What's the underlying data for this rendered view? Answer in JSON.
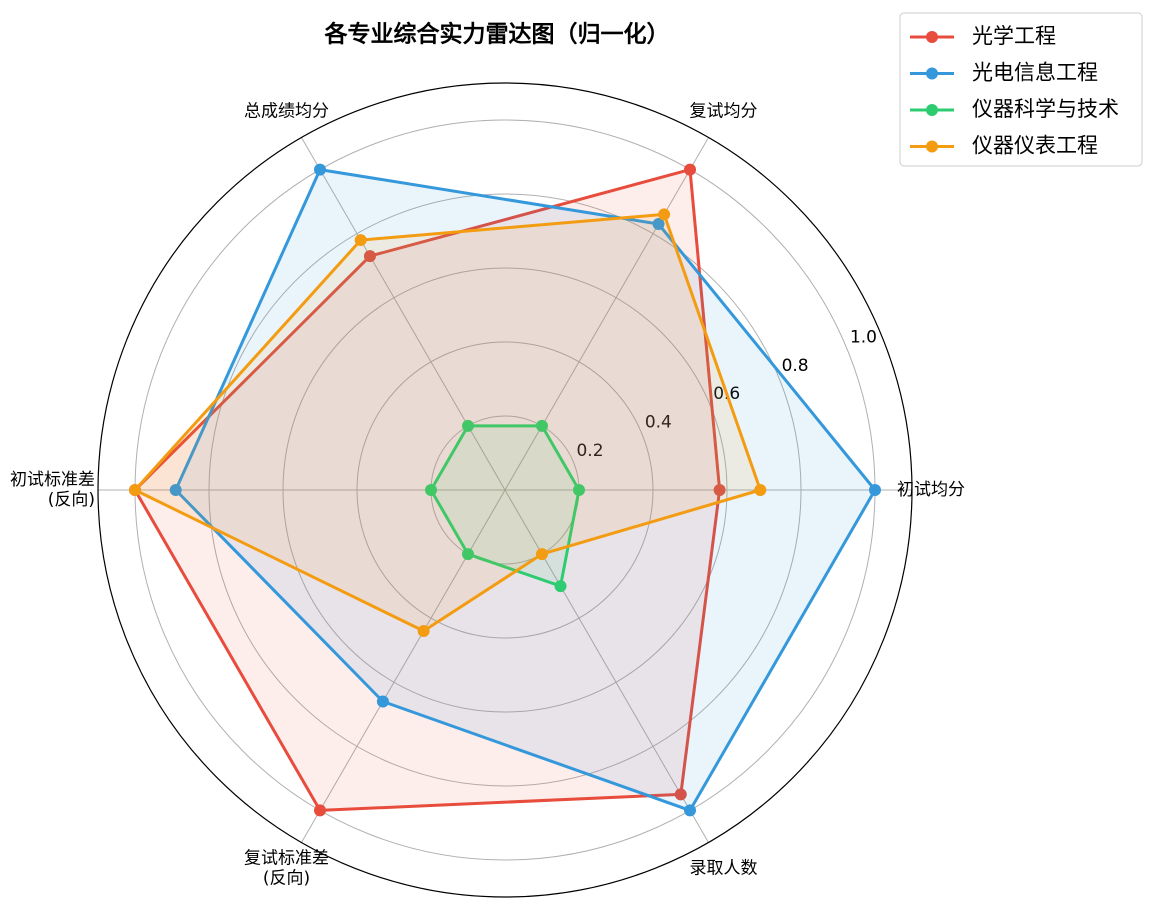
{
  "chart_data": {
    "type": "radar",
    "title": "各专业综合实力雷达图（归一化）",
    "categories": [
      "初试均分",
      "复试均分",
      "总成绩均分",
      "初试标准差\n(反向)",
      "复试标准差\n(反向)",
      "录取人数"
    ],
    "series": [
      {
        "name": "光学工程",
        "color": "#e74c3c",
        "values": [
          0.58,
          1.0,
          0.73,
          1.0,
          1.0,
          0.95
        ]
      },
      {
        "name": "光电信息工程",
        "color": "#3498db",
        "values": [
          1.0,
          0.83,
          1.0,
          0.89,
          0.66,
          1.0
        ]
      },
      {
        "name": "仪器科学与技术",
        "color": "#2ecc71",
        "values": [
          0.2,
          0.2,
          0.2,
          0.2,
          0.2,
          0.3
        ]
      },
      {
        "name": "仪器仪表工程",
        "color": "#f39c12",
        "values": [
          0.69,
          0.86,
          0.78,
          1.0,
          0.44,
          0.2
        ]
      }
    ],
    "ylim": [
      0,
      1.1
    ],
    "yticks": [
      0.2,
      0.4,
      0.6,
      0.8,
      {
        "value": 1.0,
        "label": "1.0"
      }
    ],
    "grid": true,
    "legend": "upper right"
  }
}
